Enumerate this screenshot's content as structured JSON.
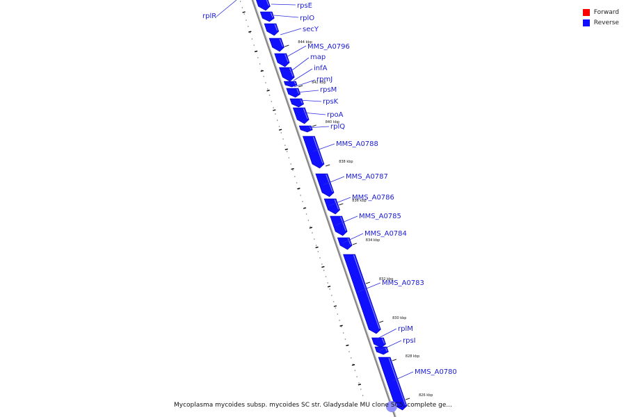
{
  "legend": {
    "items": [
      {
        "label": "Forward",
        "color": "#ff0000"
      },
      {
        "label": "Reverse",
        "color": "#1010ff"
      }
    ]
  },
  "caption": "Mycoplasma mycoides subsp. mycoides SC str. Gladysdale MU clone SC5, complete ge...",
  "colors": {
    "gene_fill": "#1010ff",
    "label_color": "#1a1ad4",
    "backbone": "#888888"
  },
  "ticks": [
    "844 kbp",
    "842 kbp",
    "840 kbp",
    "838 kbp",
    "836 kbp",
    "834 kbp",
    "832 kbp",
    "830 kbp",
    "828 kbp",
    "826 kbp"
  ],
  "genes": [
    {
      "name": "rplR",
      "strand": "reverse"
    },
    {
      "name": "rpsE",
      "strand": "reverse"
    },
    {
      "name": "rplO",
      "strand": "reverse"
    },
    {
      "name": "secY",
      "strand": "reverse"
    },
    {
      "name": "MMS_A0796",
      "strand": "reverse"
    },
    {
      "name": "map",
      "strand": "reverse"
    },
    {
      "name": "infA",
      "strand": "reverse"
    },
    {
      "name": "rpmJ",
      "strand": "reverse"
    },
    {
      "name": "rpsM",
      "strand": "reverse"
    },
    {
      "name": "rpsK",
      "strand": "reverse"
    },
    {
      "name": "rpoA",
      "strand": "reverse"
    },
    {
      "name": "rplQ",
      "strand": "reverse"
    },
    {
      "name": "MMS_A0788",
      "strand": "reverse"
    },
    {
      "name": "MMS_A0787",
      "strand": "reverse"
    },
    {
      "name": "MMS_A0786",
      "strand": "reverse"
    },
    {
      "name": "MMS_A0785",
      "strand": "reverse"
    },
    {
      "name": "MMS_A0784",
      "strand": "reverse"
    },
    {
      "name": "MMS_A0783",
      "strand": "reverse"
    },
    {
      "name": "rplM",
      "strand": "reverse"
    },
    {
      "name": "rpsI",
      "strand": "reverse"
    },
    {
      "name": "MMS_A0780",
      "strand": "reverse"
    }
  ]
}
